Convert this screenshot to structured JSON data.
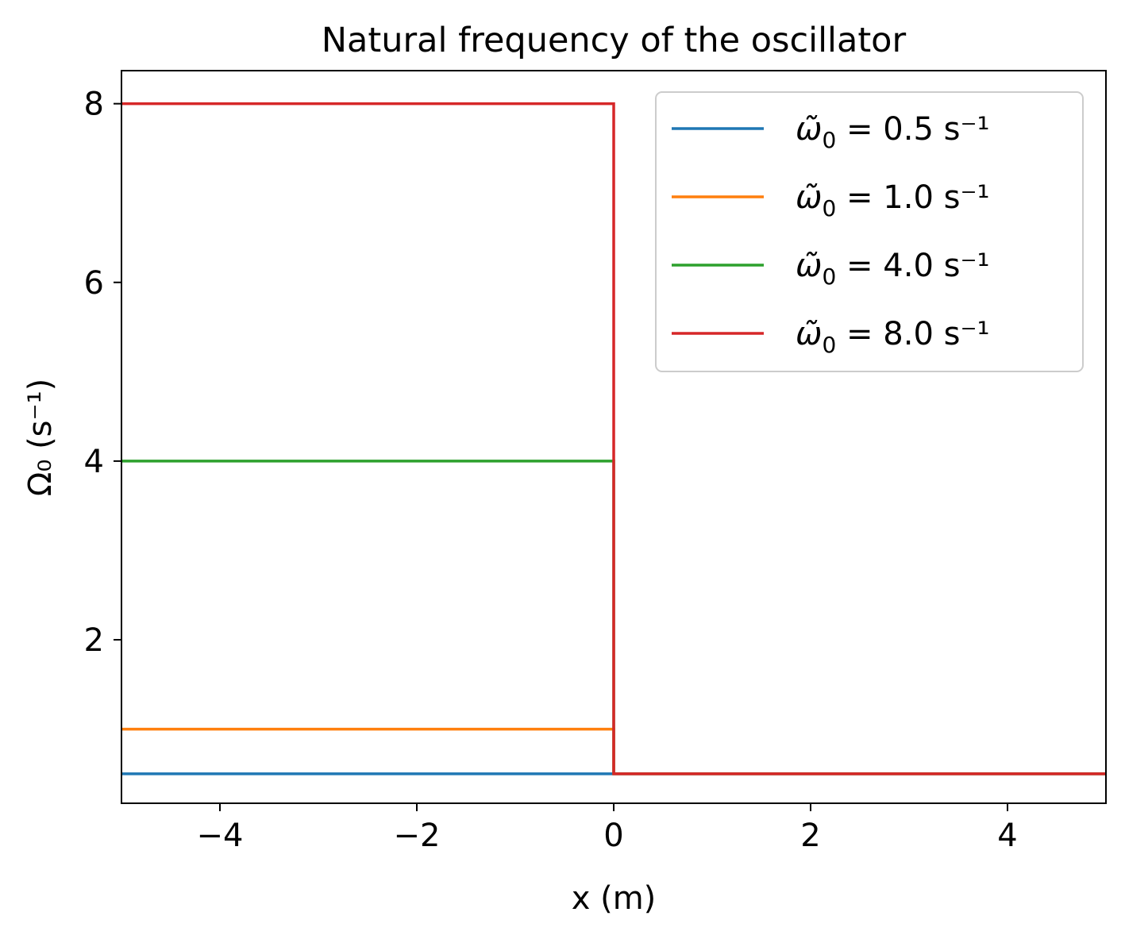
{
  "chart_data": {
    "type": "line",
    "title": "Natural frequency of the oscillator",
    "xlabel": "x (m)",
    "ylabel": "Ω₀ (s⁻¹)",
    "xlim": [
      -5,
      5
    ],
    "ylim": [
      0.17,
      8.37
    ],
    "xticks": [
      -4,
      -2,
      0,
      2,
      4
    ],
    "xtick_labels": [
      "−4",
      "−2",
      "0",
      "2",
      "4"
    ],
    "yticks": [
      2,
      4,
      6,
      8
    ],
    "ytick_labels": [
      "2",
      "4",
      "6",
      "8"
    ],
    "grid": false,
    "legend_position": "top-right",
    "series": [
      {
        "name": "ω̃₀ = 0.5 s⁻¹",
        "legend_base": "ω̃",
        "legend_sub": "0",
        "legend_rest": " = 0.5 s⁻¹",
        "color": "#1f77b4",
        "x": [
          -5,
          0,
          0,
          5
        ],
        "y": [
          0.5,
          0.5,
          0.5,
          0.5
        ]
      },
      {
        "name": "ω̃₀ = 1.0 s⁻¹",
        "legend_base": "ω̃",
        "legend_sub": "0",
        "legend_rest": " = 1.0 s⁻¹",
        "color": "#ff7f0e",
        "x": [
          -5,
          0,
          0,
          5
        ],
        "y": [
          1.0,
          1.0,
          0.5,
          0.5
        ]
      },
      {
        "name": "ω̃₀ = 4.0 s⁻¹",
        "legend_base": "ω̃",
        "legend_sub": "0",
        "legend_rest": " = 4.0 s⁻¹",
        "color": "#2ca02c",
        "x": [
          -5,
          0,
          0,
          5
        ],
        "y": [
          4.0,
          4.0,
          0.5,
          0.5
        ]
      },
      {
        "name": "ω̃₀ = 8.0 s⁻¹",
        "legend_base": "ω̃",
        "legend_sub": "0",
        "legend_rest": " = 8.0 s⁻¹",
        "color": "#d62728",
        "x": [
          -5,
          0,
          0,
          5
        ],
        "y": [
          8.0,
          8.0,
          0.5,
          0.5
        ]
      }
    ]
  }
}
